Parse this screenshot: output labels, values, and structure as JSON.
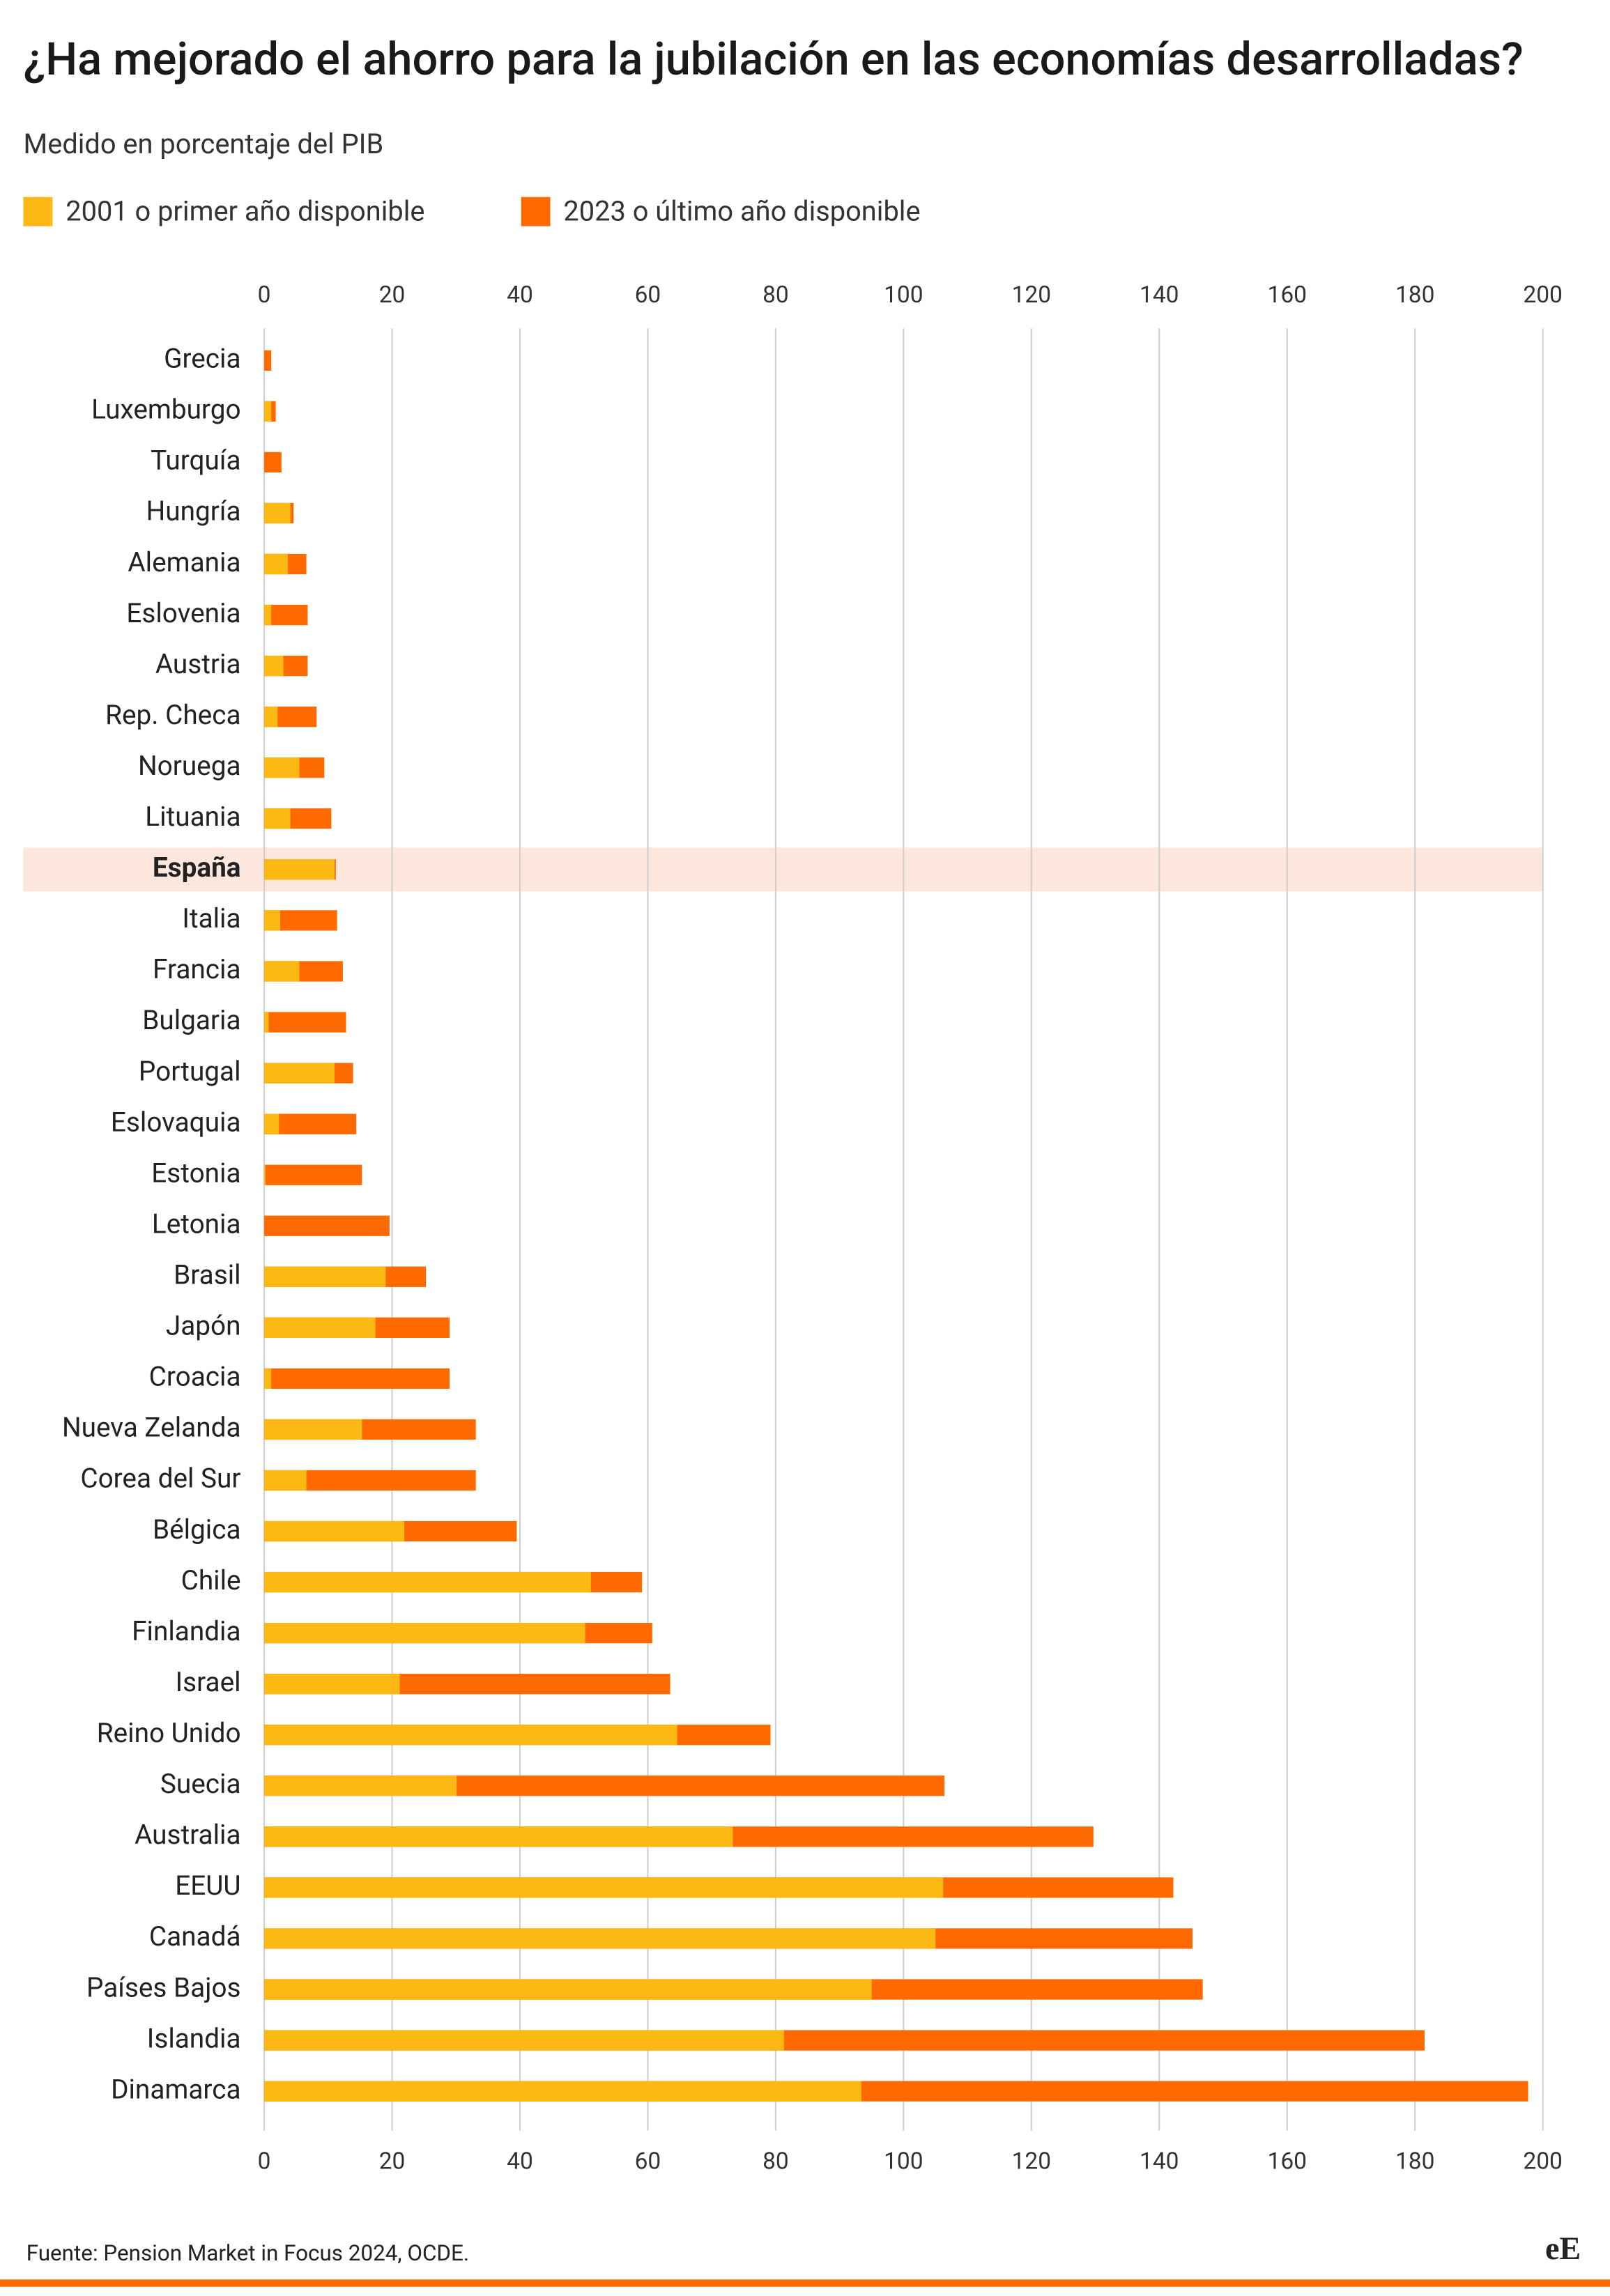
{
  "chart_data": {
    "type": "overlap-bar",
    "title": "¿Ha mejorado el ahorro para la jubilación en las economías desarrolladas?",
    "subtitle": "Medido en porcentaje del PIB",
    "source": "Fuente: Pension Market in Focus 2024, OCDE.",
    "logo": "eE",
    "highlight_category": "España",
    "highlight_color": "#fde6dc",
    "categories": [
      "Grecia",
      "Luxemburgo",
      "Turquía",
      "Hungría",
      "Alemania",
      "Eslovenia",
      "Austria",
      "Rep. Checa",
      "Noruega",
      "Lituania",
      "España",
      "Italia",
      "Francia",
      "Bulgaria",
      "Portugal",
      "Eslovaquia",
      "Estonia",
      "Letonia",
      "Brasil",
      "Japón",
      "Croacia",
      "Nueva Zelanda",
      "Corea del Sur",
      "Bélgica",
      "Chile",
      "Finlandia",
      "Israel",
      "Reino Unido",
      "Suecia",
      "Australia",
      "EEUU",
      "Canadá",
      "Países Bajos",
      "Islandia",
      "Dinamarca"
    ],
    "series": [
      {
        "name": "2001 o primer año disponible",
        "color": "#fdb913",
        "values": [
          0,
          1.1,
          0,
          4.1,
          3.7,
          1.1,
          3.0,
          2.1,
          5.5,
          4.1,
          11.0,
          2.5,
          5.5,
          0.7,
          11.0,
          2.3,
          0.2,
          0,
          19.0,
          17.4,
          1.1,
          15.3,
          6.6,
          21.9,
          51.1,
          50.2,
          21.2,
          64.6,
          30.1,
          73.3,
          106.2,
          105.0,
          95.0,
          81.3,
          93.4
        ]
      },
      {
        "name": "2023 o último año disponible",
        "color": "#ff6a00",
        "values": [
          1.1,
          1.8,
          2.7,
          4.6,
          6.6,
          6.8,
          6.8,
          8.2,
          9.4,
          10.5,
          11.2,
          11.4,
          12.3,
          12.8,
          13.9,
          14.4,
          15.3,
          19.6,
          25.3,
          29.0,
          29.0,
          33.1,
          33.1,
          39.5,
          59.1,
          60.7,
          63.5,
          79.2,
          106.4,
          129.7,
          142.2,
          145.2,
          146.8,
          181.5,
          197.7
        ]
      }
    ],
    "xlim": [
      0,
      200
    ],
    "xticks": [
      0,
      20,
      40,
      60,
      80,
      100,
      120,
      140,
      160,
      180,
      200
    ],
    "grid": true
  }
}
